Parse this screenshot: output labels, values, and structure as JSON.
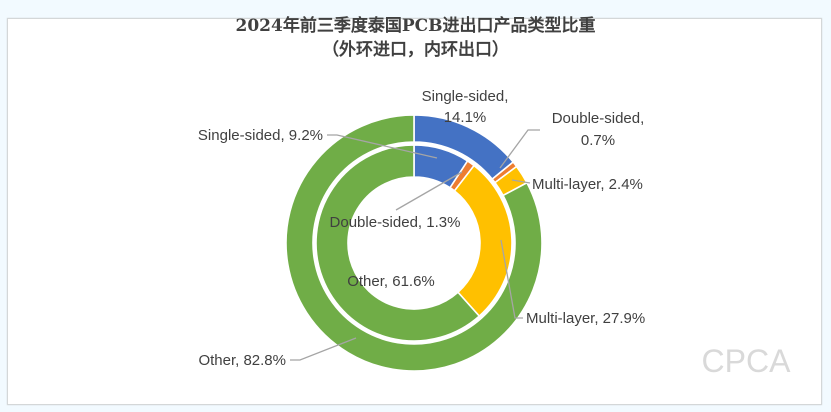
{
  "title": {
    "line1": "2024年前三季度泰国PCB进出口产品类型比重",
    "line2": "（外环进口，内环出口）"
  },
  "watermark": "CPCA",
  "colors": {
    "single_sided": "#4472c4",
    "double_sided": "#ed7d31",
    "multi_layer": "#ffc000",
    "other": "#70ad47",
    "background": "#f2faff",
    "leader_line": "#a5a5a5"
  },
  "labels": {
    "outer_single": [
      "Single-sided,",
      "14.1%"
    ],
    "outer_double": [
      "Double-sided,",
      "0.7%"
    ],
    "outer_multi": "Multi-layer, 2.4%",
    "outer_other": "Other, 82.8%",
    "inner_single": "Single-sided, 9.2%",
    "inner_double": "Double-sided, 1.3%",
    "inner_multi": "Multi-layer, 27.9%",
    "inner_other": "Other, 61.6%"
  },
  "chart_data": {
    "type": "pie",
    "subtype": "doughnut",
    "title": "2024年前三季度泰国PCB进出口产品类型比重（外环进口，内环出口）",
    "categories": [
      "Single-sided",
      "Double-sided",
      "Multi-layer",
      "Other"
    ],
    "series": [
      {
        "name": "进口 (outer ring, import)",
        "values": [
          14.1,
          0.7,
          2.4,
          82.8
        ]
      },
      {
        "name": "出口 (inner ring, export)",
        "values": [
          9.2,
          1.3,
          27.9,
          61.6
        ]
      }
    ],
    "colors": [
      "#4472c4",
      "#ed7d31",
      "#ffc000",
      "#70ad47"
    ],
    "unit": "%",
    "legend": "none (data labels with category name and percentage)",
    "watermark": "CPCA"
  }
}
